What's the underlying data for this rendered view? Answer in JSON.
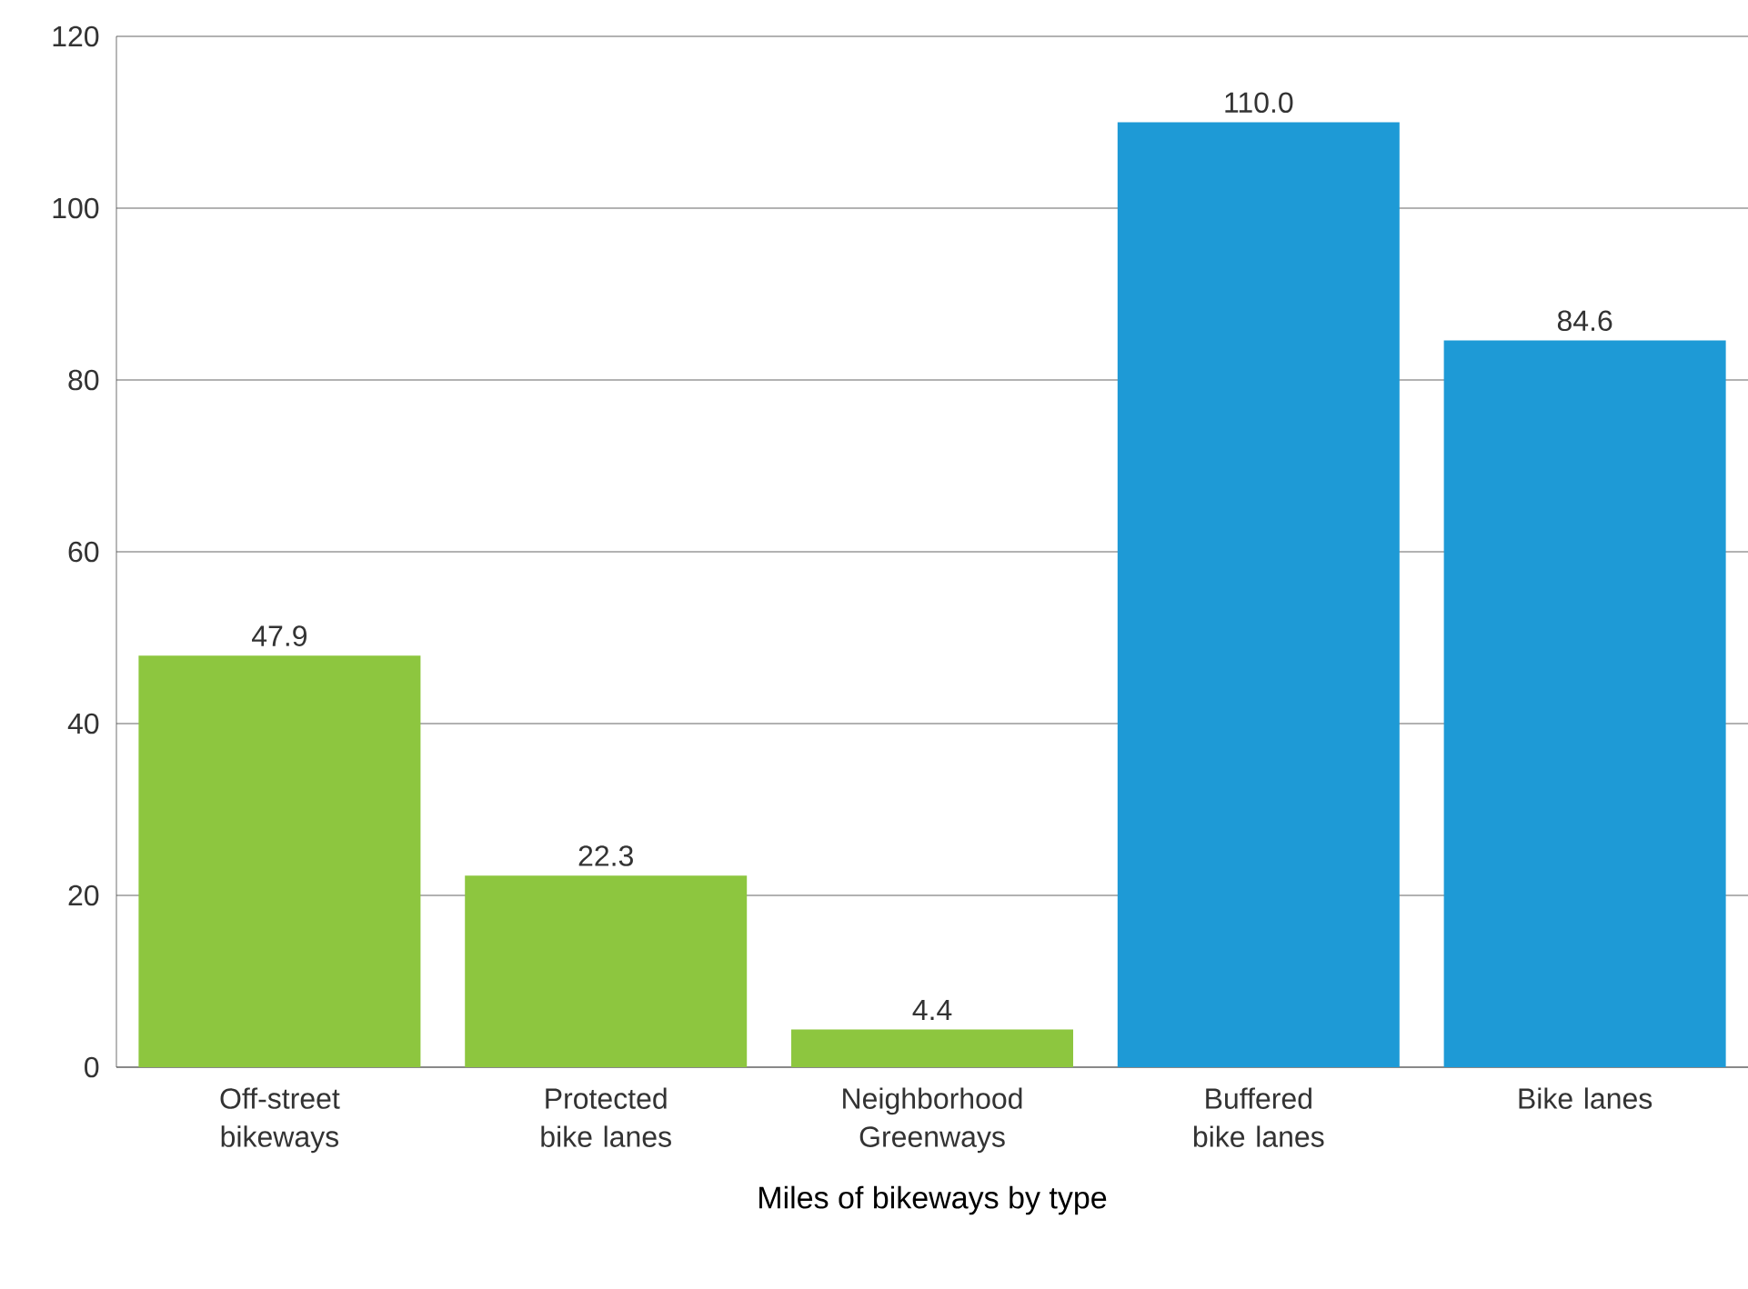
{
  "chart_data": {
    "type": "bar",
    "xlabel": "Miles of bikeways by type",
    "categories": [
      "Off-street bikeways",
      "Protected bike lanes",
      "Neighborhood Greenways",
      "Buffered bike lanes",
      "Bike lanes"
    ],
    "values": [
      47.9,
      22.3,
      4.4,
      110.0,
      84.6
    ],
    "value_labels": [
      "47.9",
      "22.3",
      "4.4",
      "110.0",
      "84.6"
    ],
    "colors": [
      "#8dc63f",
      "#8dc63f",
      "#8dc63f",
      "#1e9ad6",
      "#1e9ad6"
    ],
    "ylim": [
      0,
      120
    ],
    "yticks": [
      0,
      20,
      40,
      60,
      80,
      100,
      120
    ],
    "grid": "y"
  }
}
